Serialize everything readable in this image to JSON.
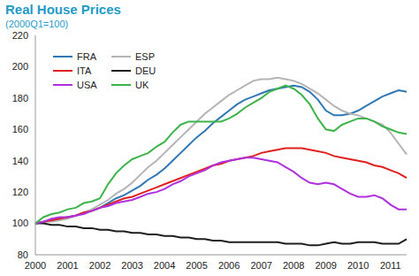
{
  "chart_data": {
    "type": "line",
    "title": "Real House Prices",
    "subtitle": "(2000Q1=100)",
    "categories": [
      "2000",
      null,
      null,
      null,
      "2001",
      null,
      null,
      null,
      "2002",
      null,
      null,
      null,
      "2003",
      null,
      null,
      null,
      "2004",
      null,
      null,
      null,
      "2005",
      null,
      null,
      null,
      "2006",
      null,
      null,
      null,
      "2007",
      null,
      null,
      null,
      "2008",
      null,
      null,
      null,
      "2009",
      null,
      null,
      null,
      "2010",
      null,
      null,
      null,
      "2011",
      null,
      null
    ],
    "ylim": [
      80,
      220
    ],
    "yticks": [
      80,
      100,
      120,
      140,
      160,
      180,
      200,
      220
    ],
    "grid": false,
    "legend": "upper left",
    "series": [
      {
        "name": "FRA",
        "color": "#2f77b5",
        "values": [
          100,
          101,
          102,
          103,
          104,
          105,
          107,
          108,
          110,
          113,
          116,
          118,
          121,
          124,
          128,
          131,
          135,
          140,
          145,
          150,
          155,
          159,
          164,
          168,
          172,
          176,
          179,
          181,
          183,
          185,
          186,
          187,
          188,
          187,
          184,
          179,
          172,
          169,
          169,
          170,
          172,
          175,
          178,
          181,
          183,
          185,
          184
        ]
      },
      {
        "name": "ESP",
        "color": "#b4b4b4",
        "values": [
          100,
          101,
          101,
          102,
          103,
          105,
          107,
          109,
          112,
          115,
          119,
          122,
          126,
          131,
          136,
          140,
          145,
          150,
          155,
          160,
          165,
          170,
          174,
          178,
          182,
          185,
          188,
          191,
          192,
          192,
          193,
          192,
          191,
          189,
          186,
          183,
          179,
          175,
          172,
          170,
          169,
          167,
          165,
          163,
          158,
          151,
          144
        ]
      },
      {
        "name": "ITA",
        "color": "#e02020",
        "values": [
          100,
          101,
          102,
          103,
          104,
          105,
          107,
          108,
          110,
          112,
          114,
          116,
          117,
          119,
          121,
          123,
          125,
          127,
          129,
          131,
          133,
          135,
          137,
          138,
          140,
          141,
          142,
          143,
          145,
          146,
          147,
          148,
          148,
          148,
          147,
          146,
          145,
          143,
          142,
          141,
          140,
          139,
          137,
          136,
          134,
          132,
          129
        ]
      },
      {
        "name": "DEU",
        "color": "#1e1e1e",
        "values": [
          100,
          100,
          99,
          99,
          98,
          98,
          97,
          97,
          96,
          96,
          95,
          95,
          94,
          94,
          93,
          93,
          92,
          92,
          91,
          91,
          90,
          90,
          89,
          89,
          88,
          88,
          88,
          88,
          88,
          88,
          88,
          87,
          87,
          87,
          86,
          86,
          87,
          88,
          87,
          87,
          88,
          88,
          88,
          87,
          87,
          87,
          90
        ]
      },
      {
        "name": "USA",
        "color": "#b030e0",
        "values": [
          100,
          101,
          103,
          104,
          104,
          105,
          106,
          108,
          110,
          111,
          113,
          114,
          115,
          117,
          119,
          120,
          122,
          125,
          127,
          130,
          132,
          134,
          137,
          139,
          140,
          141,
          142,
          142,
          141,
          140,
          139,
          136,
          133,
          129,
          126,
          125,
          126,
          125,
          122,
          119,
          117,
          117,
          118,
          116,
          112,
          109,
          109
        ]
      },
      {
        "name": "UK",
        "color": "#3cb44b",
        "values": [
          100,
          104,
          106,
          107,
          109,
          110,
          113,
          114,
          116,
          125,
          132,
          137,
          141,
          143,
          145,
          149,
          152,
          158,
          163,
          165,
          165,
          165,
          165,
          165,
          167,
          170,
          174,
          177,
          180,
          184,
          186,
          188,
          186,
          182,
          176,
          167,
          160,
          159,
          163,
          165,
          167,
          167,
          165,
          162,
          160,
          158,
          157
        ]
      }
    ]
  }
}
